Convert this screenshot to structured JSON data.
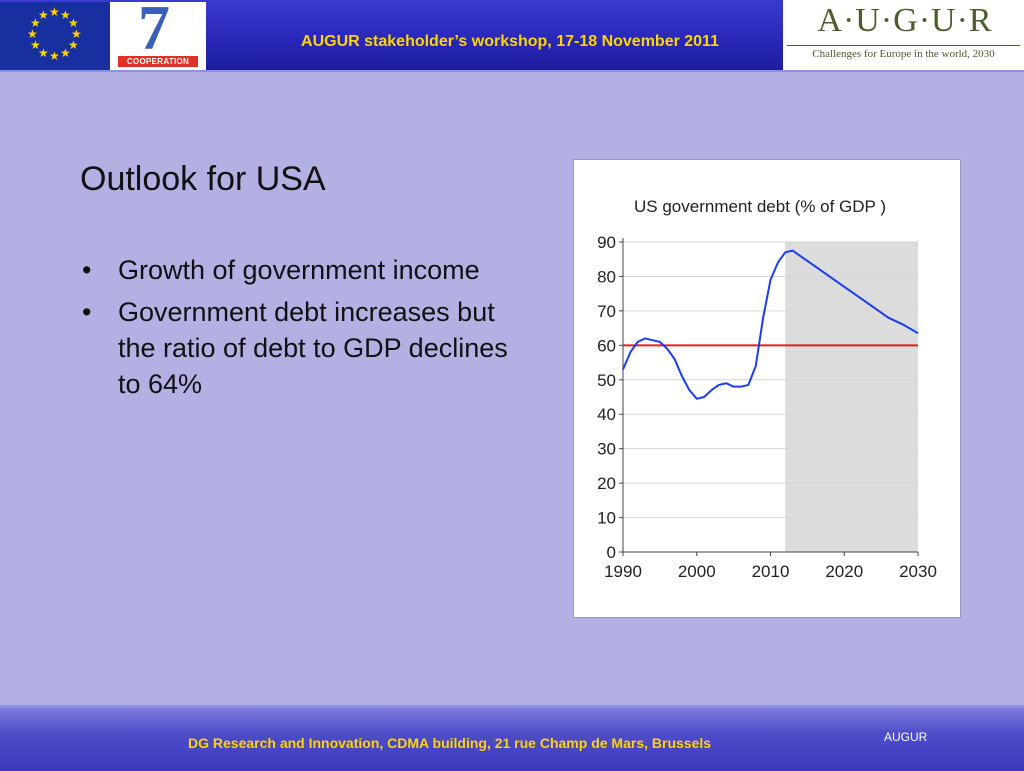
{
  "header": {
    "title": "AUGUR  stakeholder’s workshop, 17-18 November 2011",
    "fp7_label": "COOPERATION",
    "augur_logo": "A·U·G·U·R",
    "augur_tagline": "Challenges for Europe in the world, 2030"
  },
  "slide": {
    "title": "Outlook for USA",
    "bullets": [
      "Growth of government income",
      "Government debt increases but the ratio of debt to GDP declines to 64%"
    ]
  },
  "chart_data": {
    "type": "line",
    "title": "US government debt (% of GDP )",
    "xlim": [
      1990,
      2030
    ],
    "ylim": [
      0,
      90
    ],
    "x_ticks": [
      1990,
      2000,
      2010,
      2020,
      2030
    ],
    "y_ticks": [
      0,
      10,
      20,
      30,
      40,
      50,
      60,
      70,
      80,
      90
    ],
    "grid": true,
    "projection_shaded_from": 2012,
    "reference_line": {
      "y": 60,
      "color": "#e02020"
    },
    "series": [
      {
        "color": "#1a3df0",
        "x": [
          1990,
          1991,
          1992,
          1993,
          1994,
          1995,
          1996,
          1997,
          1998,
          1999,
          2000,
          2001,
          2002,
          2003,
          2004,
          2005,
          2006,
          2007,
          2008,
          2009,
          2010,
          2011,
          2012,
          2013,
          2014,
          2016,
          2018,
          2020,
          2022,
          2024,
          2026,
          2028,
          2030
        ],
        "y": [
          53,
          58,
          61,
          62,
          61.5,
          61,
          59,
          56,
          51,
          47,
          44.5,
          45,
          47,
          48.5,
          49,
          48,
          48,
          48.5,
          54,
          68,
          79,
          84,
          87,
          87.5,
          86,
          83,
          80,
          77,
          74,
          71,
          68,
          66,
          63.5
        ]
      }
    ]
  }
}
